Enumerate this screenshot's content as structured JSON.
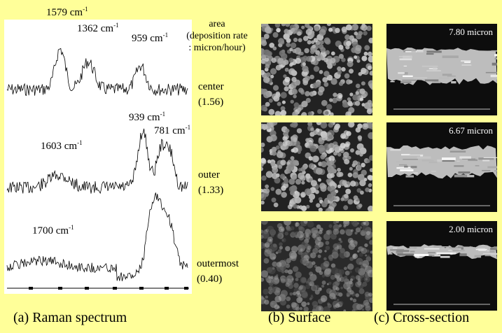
{
  "raman": {
    "peaks": {
      "p1579": {
        "value": "1579 cm",
        "sup": "-1"
      },
      "p1362": {
        "value": "1362 cm",
        "sup": "-1"
      },
      "p959": {
        "value": "959 cm",
        "sup": "-1"
      },
      "p939": {
        "value": "939 cm",
        "sup": "-1"
      },
      "p781": {
        "value": "781 cm",
        "sup": "-1"
      },
      "p1603": {
        "value": "1603 cm",
        "sup": "-1"
      },
      "p1700": {
        "value": "1700 cm",
        "sup": "-1"
      }
    }
  },
  "legend": {
    "line1": "area",
    "line2": "(deposition rate",
    "line3": ": micron/hour)"
  },
  "areas": [
    {
      "name": "center",
      "rate": "(1.56)"
    },
    {
      "name": "outer",
      "rate": "(1.33)"
    },
    {
      "name": "outermost",
      "rate": "(0.40)"
    }
  ],
  "thickness": [
    "7.80 micron",
    "6.67 micron",
    "2.00 micron"
  ],
  "captions": {
    "a": "(a) Raman spectrum",
    "b": "(b) Surface",
    "c": "(c) Cross-section"
  },
  "colors": {
    "background": "#ffff99",
    "panel": "#ffffff",
    "sem_dark": "#1a1a1a"
  }
}
